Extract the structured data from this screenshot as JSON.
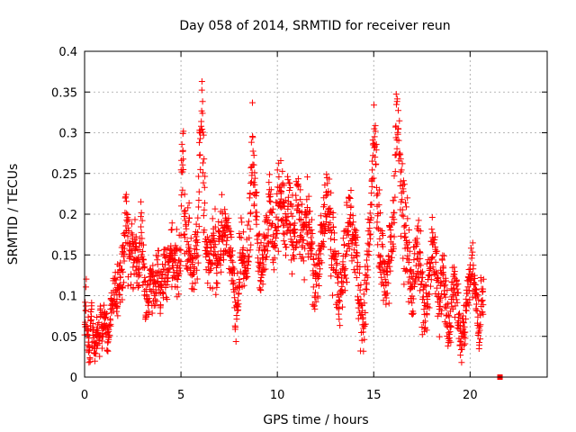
{
  "chart_data": {
    "type": "scatter",
    "title": "Day 058 of 2014, SRMTID for receiver reun",
    "xlabel": "GPS time / hours",
    "ylabel": "SRMTID / TECUs",
    "xlim": [
      0,
      24
    ],
    "ylim": [
      0,
      0.4
    ],
    "xticks": [
      0,
      5,
      10,
      15,
      20
    ],
    "xtick_labels": [
      "0",
      "5",
      "10",
      "15",
      "20"
    ],
    "yticks": [
      0,
      0.05,
      0.1,
      0.15,
      0.2,
      0.25,
      0.3,
      0.35,
      0.4
    ],
    "ytick_labels": [
      "0",
      "0.05",
      "0.1",
      "0.15",
      "0.2",
      "0.25",
      "0.3",
      "0.35",
      "0.4"
    ],
    "grid": true,
    "marker": "+",
    "color": "#ff0000",
    "series": [
      {
        "name": "SRMTID",
        "x_start": 0.0,
        "x_step": 0.05,
        "values": [
          0.075,
          0.095,
          0.06,
          0.045,
          0.04,
          0.035,
          0.06,
          0.08,
          0.05,
          0.045,
          0.03,
          0.04,
          0.055,
          0.06,
          0.05,
          0.045,
          0.07,
          0.06,
          0.05,
          0.065,
          0.075,
          0.07,
          0.06,
          0.05,
          0.045,
          0.055,
          0.065,
          0.08,
          0.09,
          0.1,
          0.095,
          0.11,
          0.1,
          0.09,
          0.105,
          0.12,
          0.115,
          0.125,
          0.13,
          0.135,
          0.15,
          0.17,
          0.2,
          0.19,
          0.18,
          0.16,
          0.15,
          0.145,
          0.155,
          0.16,
          0.14,
          0.15,
          0.155,
          0.145,
          0.15,
          0.13,
          0.12,
          0.15,
          0.2,
          0.17,
          0.145,
          0.13,
          0.11,
          0.09,
          0.08,
          0.095,
          0.105,
          0.12,
          0.13,
          0.125,
          0.115,
          0.11,
          0.1,
          0.105,
          0.12,
          0.13,
          0.125,
          0.11,
          0.1,
          0.115,
          0.12,
          0.125,
          0.13,
          0.14,
          0.125,
          0.115,
          0.13,
          0.145,
          0.15,
          0.16,
          0.155,
          0.14,
          0.13,
          0.135,
          0.14,
          0.15,
          0.13,
          0.12,
          0.135,
          0.15,
          0.22,
          0.25,
          0.26,
          0.2,
          0.18,
          0.16,
          0.15,
          0.17,
          0.19,
          0.16,
          0.15,
          0.14,
          0.13,
          0.125,
          0.14,
          0.155,
          0.16,
          0.17,
          0.22,
          0.28,
          0.32,
          0.33,
          0.28,
          0.24,
          0.2,
          0.17,
          0.16,
          0.15,
          0.15,
          0.14,
          0.135,
          0.15,
          0.16,
          0.17,
          0.16,
          0.155,
          0.14,
          0.13,
          0.15,
          0.165,
          0.17,
          0.18,
          0.19,
          0.17,
          0.16,
          0.165,
          0.175,
          0.18,
          0.185,
          0.17,
          0.16,
          0.15,
          0.14,
          0.13,
          0.12,
          0.1,
          0.08,
          0.07,
          0.09,
          0.11,
          0.13,
          0.15,
          0.16,
          0.155,
          0.15,
          0.14,
          0.135,
          0.13,
          0.14,
          0.15,
          0.17,
          0.19,
          0.21,
          0.26,
          0.28,
          0.25,
          0.22,
          0.2,
          0.18,
          0.16,
          0.15,
          0.14,
          0.13,
          0.135,
          0.14,
          0.15,
          0.155,
          0.16,
          0.17,
          0.18,
          0.19,
          0.2,
          0.21,
          0.2,
          0.19,
          0.18,
          0.17,
          0.175,
          0.185,
          0.195,
          0.21,
          0.22,
          0.23,
          0.22,
          0.21,
          0.2,
          0.19,
          0.185,
          0.18,
          0.19,
          0.2,
          0.21,
          0.2,
          0.19,
          0.18,
          0.175,
          0.17,
          0.18,
          0.19,
          0.2,
          0.21,
          0.22,
          0.2,
          0.19,
          0.18,
          0.17,
          0.165,
          0.16,
          0.17,
          0.18,
          0.19,
          0.2,
          0.19,
          0.18,
          0.17,
          0.16,
          0.15,
          0.14,
          0.13,
          0.12,
          0.11,
          0.12,
          0.13,
          0.14,
          0.15,
          0.16,
          0.17,
          0.18,
          0.19,
          0.2,
          0.21,
          0.22,
          0.21,
          0.2,
          0.19,
          0.18,
          0.17,
          0.16,
          0.15,
          0.14,
          0.13,
          0.12,
          0.11,
          0.1,
          0.09,
          0.1,
          0.11,
          0.12,
          0.13,
          0.14,
          0.15,
          0.16,
          0.17,
          0.18,
          0.19,
          0.2,
          0.19,
          0.18,
          0.17,
          0.16,
          0.15,
          0.14,
          0.13,
          0.12,
          0.11,
          0.1,
          0.09,
          0.08,
          0.07,
          0.06,
          0.08,
          0.1,
          0.12,
          0.14,
          0.16,
          0.18,
          0.2,
          0.22,
          0.25,
          0.28,
          0.3,
          0.28,
          0.25,
          0.22,
          0.2,
          0.18,
          0.17,
          0.16,
          0.15,
          0.14,
          0.13,
          0.12,
          0.11,
          0.12,
          0.13,
          0.14,
          0.15,
          0.16,
          0.17,
          0.18,
          0.2,
          0.22,
          0.26,
          0.3,
          0.33,
          0.3,
          0.27,
          0.25,
          0.23,
          0.22,
          0.2,
          0.18,
          0.17,
          0.16,
          0.15,
          0.14,
          0.13,
          0.12,
          0.11,
          0.1,
          0.11,
          0.12,
          0.13,
          0.14,
          0.15,
          0.16,
          0.15,
          0.14,
          0.13,
          0.12,
          0.11,
          0.1,
          0.09,
          0.08,
          0.09,
          0.1,
          0.11,
          0.12,
          0.13,
          0.14,
          0.15,
          0.16,
          0.15,
          0.14,
          0.13,
          0.12,
          0.11,
          0.1,
          0.09,
          0.1,
          0.11,
          0.12,
          0.11,
          0.1,
          0.09,
          0.08,
          0.07,
          0.06,
          0.07,
          0.08,
          0.09,
          0.1,
          0.11,
          0.12,
          0.11,
          0.1,
          0.09,
          0.08,
          0.07,
          0.06,
          0.05,
          0.04,
          0.05,
          0.06,
          0.07,
          0.08,
          0.09,
          0.1,
          0.11,
          0.12,
          0.13,
          0.14,
          0.13,
          0.12,
          0.11,
          0.1,
          0.09,
          0.08,
          0.07,
          0.06,
          0.07,
          0.08,
          0.09,
          0.1
        ],
        "spread": [
          0.02,
          0.025,
          0.02,
          0.02,
          0.02,
          0.02,
          0.02,
          0.025,
          0.02,
          0.02,
          0.015,
          0.02,
          0.02,
          0.02,
          0.02,
          0.02,
          0.025,
          0.02,
          0.02,
          0.02,
          0.02,
          0.02,
          0.02,
          0.02,
          0.02,
          0.02,
          0.02,
          0.02,
          0.02,
          0.025,
          0.02,
          0.025,
          0.02,
          0.02,
          0.025,
          0.03,
          0.03,
          0.03,
          0.03,
          0.03,
          0.035,
          0.035,
          0.04,
          0.035,
          0.035,
          0.035,
          0.03,
          0.03,
          0.03,
          0.03,
          0.03,
          0.03,
          0.03,
          0.03,
          0.03,
          0.03,
          0.03,
          0.03,
          0.04,
          0.035,
          0.03,
          0.03,
          0.025,
          0.025,
          0.025,
          0.025,
          0.03,
          0.03,
          0.03,
          0.03,
          0.03,
          0.025,
          0.025,
          0.025,
          0.03,
          0.03,
          0.03,
          0.025,
          0.025,
          0.03,
          0.03,
          0.03,
          0.03,
          0.035,
          0.03,
          0.03,
          0.03,
          0.035,
          0.035,
          0.035,
          0.035,
          0.035,
          0.03,
          0.03,
          0.03,
          0.035,
          0.03,
          0.03,
          0.03,
          0.035,
          0.04,
          0.045,
          0.045,
          0.04,
          0.035,
          0.035,
          0.035,
          0.035,
          0.04,
          0.035,
          0.035,
          0.035,
          0.03,
          0.03,
          0.03,
          0.035,
          0.035,
          0.035,
          0.045,
          0.05,
          0.05,
          0.05,
          0.05,
          0.045,
          0.04,
          0.035,
          0.035,
          0.035,
          0.035,
          0.035,
          0.03,
          0.035,
          0.035,
          0.035,
          0.035,
          0.035,
          0.03,
          0.03,
          0.035,
          0.035,
          0.035,
          0.04,
          0.04,
          0.035,
          0.035,
          0.035,
          0.035,
          0.035,
          0.04,
          0.035,
          0.035,
          0.035,
          0.035,
          0.035,
          0.035,
          0.03,
          0.03,
          0.025,
          0.03,
          0.035,
          0.035,
          0.035,
          0.035,
          0.035,
          0.035,
          0.035,
          0.035,
          0.035,
          0.035,
          0.035,
          0.04,
          0.045,
          0.045,
          0.05,
          0.05,
          0.05,
          0.045,
          0.045,
          0.04,
          0.04,
          0.04,
          0.035,
          0.035,
          0.035,
          0.035,
          0.035,
          0.035,
          0.035,
          0.04,
          0.04,
          0.04,
          0.045,
          0.045,
          0.045,
          0.045,
          0.04,
          0.04,
          0.04,
          0.04,
          0.04,
          0.04,
          0.045,
          0.045,
          0.045,
          0.045,
          0.045,
          0.045,
          0.04,
          0.04,
          0.04,
          0.04,
          0.04,
          0.045,
          0.045,
          0.045,
          0.04,
          0.04,
          0.04,
          0.04,
          0.04,
          0.04,
          0.045,
          0.045,
          0.045,
          0.045,
          0.045,
          0.04,
          0.04,
          0.04,
          0.04,
          0.04,
          0.04,
          0.04,
          0.045,
          0.045,
          0.045,
          0.04,
          0.04,
          0.04,
          0.04,
          0.04,
          0.035,
          0.035,
          0.035,
          0.035,
          0.035,
          0.035,
          0.035,
          0.035,
          0.04,
          0.04,
          0.04,
          0.04,
          0.04,
          0.045,
          0.045,
          0.045,
          0.045,
          0.04,
          0.04,
          0.04,
          0.04,
          0.04,
          0.04,
          0.04,
          0.035,
          0.035,
          0.035,
          0.035,
          0.035,
          0.035,
          0.035,
          0.035,
          0.035,
          0.035,
          0.04,
          0.04,
          0.04,
          0.04,
          0.04,
          0.04,
          0.04,
          0.04,
          0.04,
          0.04,
          0.04,
          0.04,
          0.035,
          0.035,
          0.035,
          0.035,
          0.035,
          0.035,
          0.03,
          0.03,
          0.03,
          0.035,
          0.035,
          0.035,
          0.04,
          0.04,
          0.045,
          0.045,
          0.05,
          0.05,
          0.05,
          0.05,
          0.045,
          0.045,
          0.04,
          0.04,
          0.04,
          0.035,
          0.035,
          0.035,
          0.035,
          0.035,
          0.035,
          0.035,
          0.035,
          0.035,
          0.035,
          0.035,
          0.04,
          0.04,
          0.04,
          0.045,
          0.05,
          0.05,
          0.05,
          0.05,
          0.05,
          0.045,
          0.045,
          0.045,
          0.04,
          0.04,
          0.04,
          0.04,
          0.035,
          0.035,
          0.035,
          0.035,
          0.035,
          0.035,
          0.035,
          0.035,
          0.035,
          0.035,
          0.035,
          0.035,
          0.035,
          0.035,
          0.035,
          0.035,
          0.035,
          0.03,
          0.03,
          0.03,
          0.03,
          0.035,
          0.035,
          0.035,
          0.035,
          0.035,
          0.035,
          0.035,
          0.035,
          0.035,
          0.035,
          0.035,
          0.035,
          0.03,
          0.03,
          0.03,
          0.035,
          0.035,
          0.03,
          0.03,
          0.03,
          0.03,
          0.03,
          0.025,
          0.025,
          0.025,
          0.03,
          0.03,
          0.03,
          0.03,
          0.03,
          0.03,
          0.03,
          0.03,
          0.03,
          0.03,
          0.025,
          0.025,
          0.025,
          0.025,
          0.025,
          0.02,
          0.025,
          0.025,
          0.025,
          0.03,
          0.03,
          0.03,
          0.03,
          0.03,
          0.03,
          0.03,
          0.03,
          0.03,
          0.03,
          0.03,
          0.025,
          0.025,
          0.025,
          0.025,
          0.025,
          0.025,
          0.025,
          0.025,
          0.025,
          0.025
        ]
      },
      {
        "name": "outlier",
        "points": [
          [
            21.55,
            0.0
          ]
        ],
        "marker": "square"
      }
    ]
  }
}
